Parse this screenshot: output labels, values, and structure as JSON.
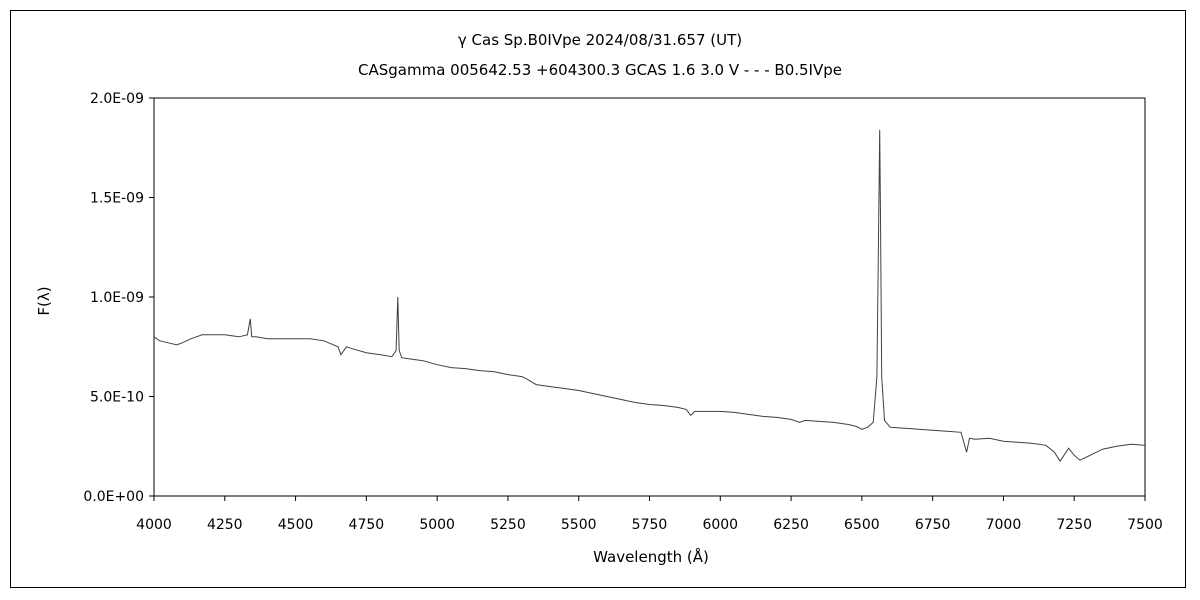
{
  "chart_data": {
    "type": "line",
    "title": "γ Cas    Sp.B0IVpe    2024/08/31.657 (UT)",
    "subtitle": "CASgamma 005642.53 +604300.3 GCAS 1.6 3.0 V - - - B0.5IVpe",
    "xlabel": "Wavelength (Å)",
    "ylabel": "F(λ)",
    "xlim": [
      4000,
      7500
    ],
    "ylim": [
      0,
      2e-09
    ],
    "x_ticks": [
      4000,
      4250,
      4500,
      4750,
      5000,
      5250,
      5500,
      5750,
      6000,
      6250,
      6500,
      6750,
      7000,
      7250,
      7500
    ],
    "x_tick_labels": [
      "4000",
      "4250",
      "4500",
      "4750",
      "5000",
      "5250",
      "5500",
      "5750",
      "6000",
      "6250",
      "6500",
      "6750",
      "7000",
      "7250",
      "7500"
    ],
    "y_ticks": [
      0,
      5e-10,
      1e-09,
      1.5e-09,
      2e-09
    ],
    "y_tick_labels": [
      "0.0E+00",
      "5.0E-10",
      "1.0E-09",
      "1.5E-09",
      "2.0E-09"
    ],
    "grid": false,
    "legend": "none",
    "line_color": "#404040",
    "series": [
      {
        "x": [
          4000,
          4020,
          4050,
          4080,
          4100,
          4130,
          4150,
          4170,
          4200,
          4250,
          4300,
          4330,
          4340,
          4345,
          4350,
          4360,
          4400,
          4450,
          4500,
          4550,
          4600,
          4650,
          4660,
          4680,
          4700,
          4750,
          4800,
          4840,
          4855,
          4861,
          4866,
          4875,
          4900,
          4950,
          5000,
          5050,
          5100,
          5150,
          5200,
          5250,
          5300,
          5320,
          5350,
          5400,
          5450,
          5500,
          5550,
          5600,
          5650,
          5700,
          5750,
          5800,
          5850,
          5880,
          5895,
          5910,
          5950,
          6000,
          6050,
          6100,
          6150,
          6200,
          6250,
          6280,
          6300,
          6350,
          6400,
          6450,
          6480,
          6500,
          6520,
          6540,
          6553,
          6558,
          6563,
          6566,
          6570,
          6580,
          6600,
          6650,
          6700,
          6750,
          6800,
          6850,
          6870,
          6880,
          6900,
          6950,
          7000,
          7050,
          7100,
          7150,
          7180,
          7200,
          7230,
          7250,
          7270,
          7300,
          7350,
          7400,
          7450,
          7500
        ],
        "y": [
          8e-10,
          7.8e-10,
          7.7e-10,
          7.6e-10,
          7.7e-10,
          7.9e-10,
          8e-10,
          8.1e-10,
          8.1e-10,
          8.1e-10,
          8e-10,
          8.1e-10,
          8.9e-10,
          8e-10,
          8e-10,
          8e-10,
          7.9e-10,
          7.9e-10,
          7.9e-10,
          7.9e-10,
          7.8e-10,
          7.5e-10,
          7.1e-10,
          7.5e-10,
          7.4e-10,
          7.2e-10,
          7.1e-10,
          7e-10,
          7.3e-10,
          1e-09,
          7.3e-10,
          6.95e-10,
          6.9e-10,
          6.8e-10,
          6.6e-10,
          6.45e-10,
          6.4e-10,
          6.3e-10,
          6.25e-10,
          6.1e-10,
          6e-10,
          5.85e-10,
          5.6e-10,
          5.5e-10,
          5.4e-10,
          5.3e-10,
          5.15e-10,
          5e-10,
          4.85e-10,
          4.7e-10,
          4.6e-10,
          4.55e-10,
          4.45e-10,
          4.35e-10,
          4.05e-10,
          4.25e-10,
          4.25e-10,
          4.25e-10,
          4.2e-10,
          4.1e-10,
          4e-10,
          3.95e-10,
          3.85e-10,
          3.7e-10,
          3.8e-10,
          3.75e-10,
          3.7e-10,
          3.6e-10,
          3.5e-10,
          3.35e-10,
          3.45e-10,
          3.7e-10,
          6e-10,
          1.2e-09,
          1.84e-09,
          1.4e-09,
          6e-10,
          3.8e-10,
          3.45e-10,
          3.4e-10,
          3.35e-10,
          3.3e-10,
          3.25e-10,
          3.2e-10,
          2.2e-10,
          2.9e-10,
          2.85e-10,
          2.9e-10,
          2.75e-10,
          2.7e-10,
          2.65e-10,
          2.55e-10,
          2.2e-10,
          1.75e-10,
          2.4e-10,
          2.05e-10,
          1.8e-10,
          2e-10,
          2.35e-10,
          2.5e-10,
          2.6e-10,
          2.55e-10
        ]
      }
    ]
  }
}
